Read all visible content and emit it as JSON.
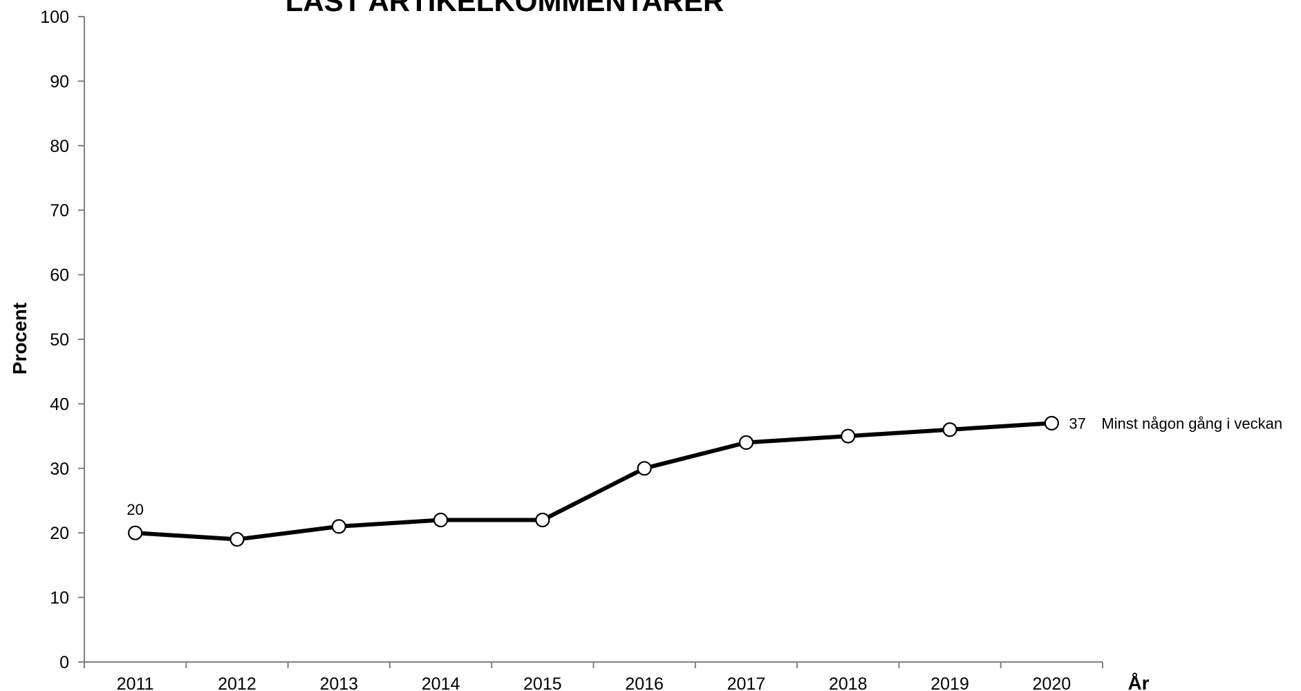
{
  "chart_data": {
    "type": "line",
    "title": "LÄST ARTIKELKOMMENTARER",
    "xlabel": "År",
    "ylabel": "Procent",
    "ylim": [
      0,
      100
    ],
    "y_ticks": [
      0,
      10,
      20,
      30,
      40,
      50,
      60,
      70,
      80,
      90,
      100
    ],
    "categories": [
      "2011",
      "2012",
      "2013",
      "2014",
      "2015",
      "2016",
      "2017",
      "2018",
      "2019",
      "2020"
    ],
    "series": [
      {
        "name": "Minst någon gång i veckan",
        "values": [
          20,
          19,
          21,
          22,
          22,
          30,
          34,
          35,
          36,
          37
        ],
        "color": "#000000",
        "marker": "open-circle"
      }
    ],
    "data_labels": [
      {
        "index": 0,
        "text": "20"
      },
      {
        "index": 9,
        "text": "37"
      }
    ],
    "grid": false,
    "legend": "inline-end-of-line"
  }
}
